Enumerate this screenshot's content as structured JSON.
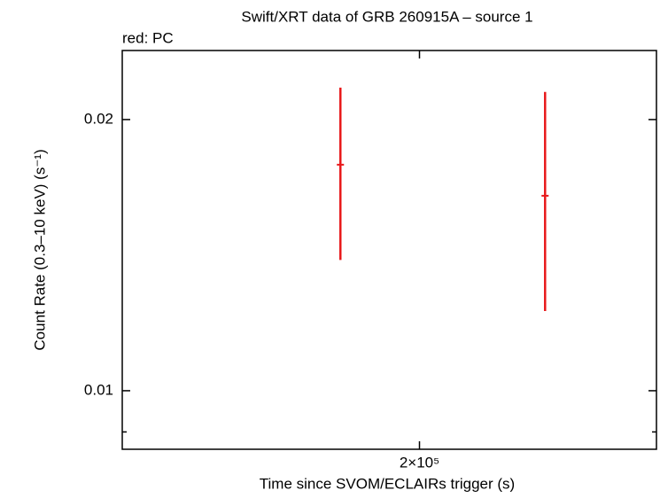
{
  "chart_data": {
    "type": "errorbar",
    "title": "Swift/XRT data of GRB 260915A – source 1",
    "subtitle": "red: PC",
    "x_label": "Time since SVOM/ECLAIRs trigger (s)",
    "y_label": "Count Rate (0.3–10 keV) (s⁻¹)",
    "x_log": true,
    "y_log": true,
    "xlim": [
      136000,
      272000
    ],
    "ylim": [
      0.00861,
      0.02386
    ],
    "xticks": [
      {
        "value": 200000,
        "label": "2×10⁵"
      }
    ],
    "yticks": [
      0.01,
      0.02
    ],
    "yminorticks": [
      0.009
    ],
    "series": [
      {
        "name": "PC",
        "color": "#e8191b",
        "x": [
          180500,
          235400
        ],
        "values": [
          0.01782,
          0.01646
        ],
        "y_lower": [
          0.01397,
          0.01226
        ],
        "y_upper": [
          0.0217,
          0.02146
        ]
      }
    ]
  }
}
